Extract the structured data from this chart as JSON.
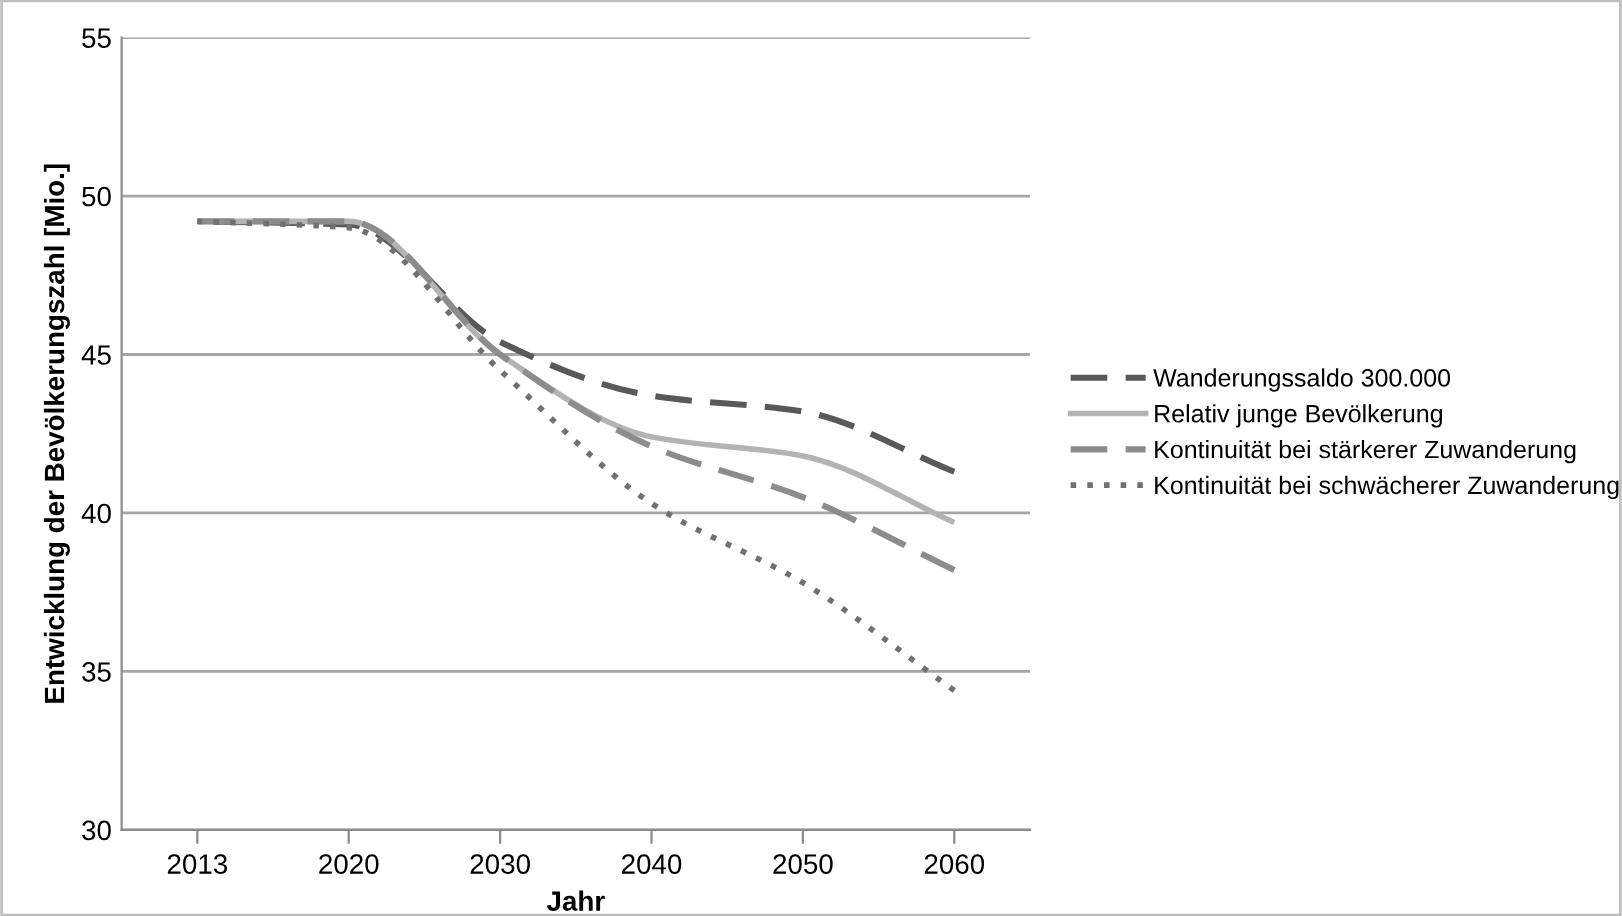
{
  "chart_data": {
    "type": "line",
    "xlabel": "Jahr",
    "ylabel": "Entwicklung der Bevölkerungszahl [Mio.]",
    "categories": [
      "2013",
      "2020",
      "2030",
      "2040",
      "2050",
      "2060"
    ],
    "ylim": [
      30,
      55
    ],
    "yticks": [
      30,
      35,
      40,
      45,
      50,
      55
    ],
    "grid": "y",
    "legend": "right",
    "marker": "none",
    "series": [
      {
        "name": "Wanderungssaldo 300.000",
        "color": "#595959",
        "line_style": "dashed",
        "values": [
          49.2,
          49.1,
          45.4,
          43.7,
          43.2,
          41.3
        ]
      },
      {
        "name": "Relativ junge Bevölkerung",
        "color": "#b3b3b3",
        "line_style": "solid",
        "values": [
          49.2,
          49.2,
          45.0,
          42.4,
          41.8,
          39.7
        ]
      },
      {
        "name": "Kontinuität bei stärkerer Zuwanderung",
        "color": "#8c8c8c",
        "line_style": "dashed",
        "values": [
          49.2,
          49.2,
          45.0,
          42.1,
          40.5,
          38.2
        ]
      },
      {
        "name": "Kontinuität bei schwächerer Zuwanderung",
        "color": "#707070",
        "line_style": "dotted",
        "values": [
          49.2,
          49.0,
          44.5,
          40.3,
          37.8,
          34.4
        ]
      }
    ]
  }
}
